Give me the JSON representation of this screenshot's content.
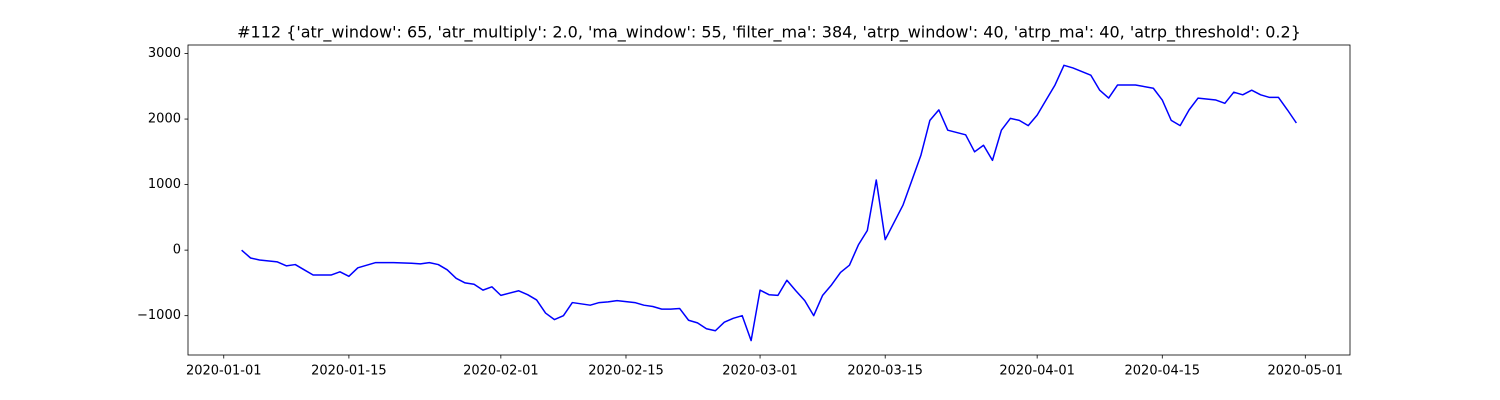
{
  "chart_data": {
    "type": "line",
    "title": "#112 {'atr_window': 65, 'atr_multiply': 2.0, 'ma_window': 55, 'filter_ma': 384, 'atrp_window': 40, 'atrp_ma': 40, 'atrp_threshold': 0.2}",
    "x": [
      "2020-01-03",
      "2020-01-04",
      "2020-01-05",
      "2020-01-07",
      "2020-01-08",
      "2020-01-09",
      "2020-01-10",
      "2020-01-11",
      "2020-01-13",
      "2020-01-14",
      "2020-01-15",
      "2020-01-16",
      "2020-01-17",
      "2020-01-18",
      "2020-01-20",
      "2020-01-22",
      "2020-01-23",
      "2020-01-24",
      "2020-01-25",
      "2020-01-26",
      "2020-01-27",
      "2020-01-28",
      "2020-01-29",
      "2020-01-30",
      "2020-01-31",
      "2020-02-01",
      "2020-02-03",
      "2020-02-04",
      "2020-02-05",
      "2020-02-06",
      "2020-02-07",
      "2020-02-08",
      "2020-02-09",
      "2020-02-11",
      "2020-02-12",
      "2020-02-13",
      "2020-02-14",
      "2020-02-16",
      "2020-02-17",
      "2020-02-18",
      "2020-02-19",
      "2020-02-20",
      "2020-02-21",
      "2020-02-22",
      "2020-02-23",
      "2020-02-24",
      "2020-02-25",
      "2020-02-26",
      "2020-02-27",
      "2020-02-28",
      "2020-02-29",
      "2020-03-01",
      "2020-03-02",
      "2020-03-03",
      "2020-03-04",
      "2020-03-05",
      "2020-03-06",
      "2020-03-07",
      "2020-03-08",
      "2020-03-09",
      "2020-03-10",
      "2020-03-11",
      "2020-03-12",
      "2020-03-13",
      "2020-03-14",
      "2020-03-15",
      "2020-03-17",
      "2020-03-18",
      "2020-03-19",
      "2020-03-20",
      "2020-03-21",
      "2020-03-22",
      "2020-03-24",
      "2020-03-25",
      "2020-03-26",
      "2020-03-27",
      "2020-03-28",
      "2020-03-29",
      "2020-03-30",
      "2020-03-31",
      "2020-04-01",
      "2020-04-02",
      "2020-04-03",
      "2020-04-04",
      "2020-04-05",
      "2020-04-07",
      "2020-04-08",
      "2020-04-09",
      "2020-04-10",
      "2020-04-12",
      "2020-04-14",
      "2020-04-15",
      "2020-04-16",
      "2020-04-17",
      "2020-04-18",
      "2020-04-19",
      "2020-04-21",
      "2020-04-22",
      "2020-04-23",
      "2020-04-24",
      "2020-04-25",
      "2020-04-26",
      "2020-04-27",
      "2020-04-28",
      "2020-04-29",
      "2020-04-30"
    ],
    "series": [
      {
        "color": "#0000ff",
        "values": [
          0,
          -120,
          -150,
          -180,
          -240,
          -220,
          -300,
          -380,
          -380,
          -330,
          -400,
          -270,
          -230,
          -190,
          -190,
          -200,
          -210,
          -190,
          -220,
          -300,
          -430,
          -500,
          -520,
          -610,
          -560,
          -690,
          -620,
          -680,
          -760,
          -960,
          -1060,
          -1000,
          -800,
          -840,
          -800,
          -790,
          -770,
          -800,
          -840,
          -860,
          -900,
          -900,
          -890,
          -1070,
          -1110,
          -1200,
          -1230,
          -1100,
          -1040,
          -1000,
          -1380,
          -610,
          -680,
          -690,
          -460,
          -620,
          -770,
          -1000,
          -690,
          -530,
          -340,
          -230,
          80,
          300,
          1070,
          160,
          690,
          1070,
          1450,
          1980,
          2140,
          1830,
          1760,
          1500,
          1600,
          1370,
          1830,
          2010,
          1980,
          1900,
          2060,
          2290,
          2520,
          2820,
          2780,
          2670,
          2440,
          2320,
          2520,
          2520,
          2470,
          2290,
          1980,
          1900,
          2140,
          2320,
          2290,
          2240,
          2410,
          2370,
          2440,
          2370,
          2330,
          2330,
          2140,
          1940
        ]
      }
    ],
    "xlim": [
      "2019-12-28",
      "2020-05-06"
    ],
    "xticks": [
      "2020-01-01",
      "2020-01-15",
      "2020-02-01",
      "2020-02-15",
      "2020-03-01",
      "2020-03-15",
      "2020-04-01",
      "2020-04-15",
      "2020-05-01"
    ],
    "ylim": [
      -1600,
      3130
    ],
    "yticks": [
      {
        "value": -1000,
        "label": "−1000"
      },
      0,
      1000,
      2000,
      3000
    ]
  }
}
